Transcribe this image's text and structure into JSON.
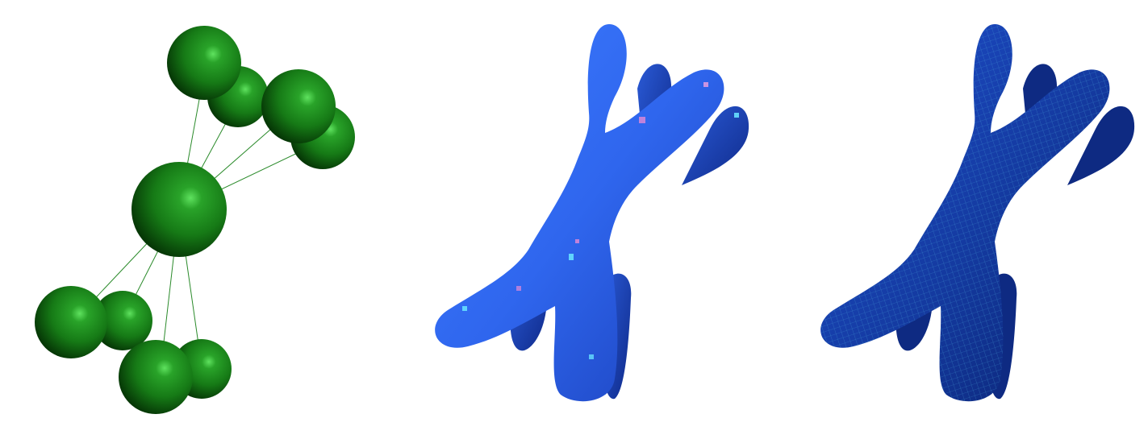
{
  "scene": {
    "panels": [
      {
        "id": "skeleton",
        "description_name": "sphere-skeleton"
      },
      {
        "id": "shaded",
        "description_name": "blobby-surface"
      },
      {
        "id": "wire",
        "description_name": "quad-mesh-surface"
      }
    ],
    "colors": {
      "sphere_green": "#1f8f1f",
      "sphere_dark": "#0a4a0a",
      "sphere_highlight": "#4fd94f",
      "edge_green": "#2a8a2a",
      "surface_blue": "#2f6ef0",
      "surface_dark": "#0a2a8a",
      "mesh_blue": "#123a9a",
      "mesh_line": "#3fa8d8",
      "background": "#ffffff"
    }
  }
}
